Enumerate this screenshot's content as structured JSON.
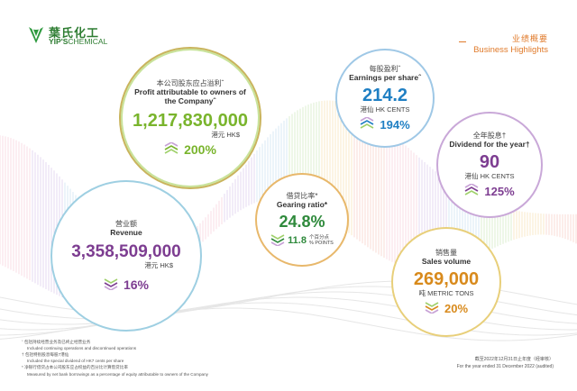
{
  "company": {
    "name_cn": "葉氏化工",
    "name_en_bold": "YIP'S",
    "name_en_rest": "CHEMICAL"
  },
  "header": {
    "title_cn": "业绩概要",
    "title_en": "Business Highlights"
  },
  "profit": {
    "label_cn": "本公司股东应占溢利ˆ",
    "label_en": "Profit attributable to owners of the Companyˆ",
    "value": "1,217,830,000",
    "unit": "港元 HK$",
    "change": "200%",
    "color": "#79b42c"
  },
  "eps": {
    "label_cn": "每股盈利ˆ",
    "label_en": "Earnings per shareˆ",
    "value": "214.2",
    "unit": "港仙 HK CENTS",
    "change": "194%",
    "color": "#1f7fc3"
  },
  "dividend": {
    "label_cn": "全年股息†",
    "label_en": "Dividend for the year†",
    "value": "90",
    "unit": "港仙 HK CENTS",
    "change": "125%",
    "color": "#7d3d91"
  },
  "gearing": {
    "label_cn": "借贷比率*",
    "label_en": "Gearing ratio*",
    "value": "24.8%",
    "change": "11.8",
    "change_unit_cn": "个百分点",
    "change_unit_en": "% POINTS",
    "color": "#2f8a3c"
  },
  "revenue": {
    "label_cn": "营业额",
    "label_en": "Revenue",
    "value": "3,358,509,000",
    "unit": "港元 HK$",
    "change": "16%",
    "color": "#7d3d91"
  },
  "volume": {
    "label_cn": "销售量",
    "label_en": "Sales volume",
    "value": "269,000",
    "unit": "吨 METRIC TONS",
    "change": "20%",
    "color": "#d88a1c"
  },
  "notes": [
    {
      "mark": "ˆ",
      "text": "包括持续经营业务及已终止经营业务"
    },
    {
      "mark": "",
      "text": "Included continuing operations and discontinued operations"
    },
    {
      "mark": "†",
      "text": "包括特别股息每股7港仙"
    },
    {
      "mark": "",
      "text": "Included the special dividend of HK7 cents per share"
    },
    {
      "mark": "*",
      "text": "净银行借贷占本公司股东应占权益的百分比计算借贷比率"
    },
    {
      "mark": "",
      "text": "Measured by net bank borrowings as a percentage of equity attributable to owners of the Company"
    }
  ],
  "period": {
    "cn": "截至2022年12月31日止年度（经审核）",
    "en": "For the year ended 31 December 2022 (audited)"
  }
}
